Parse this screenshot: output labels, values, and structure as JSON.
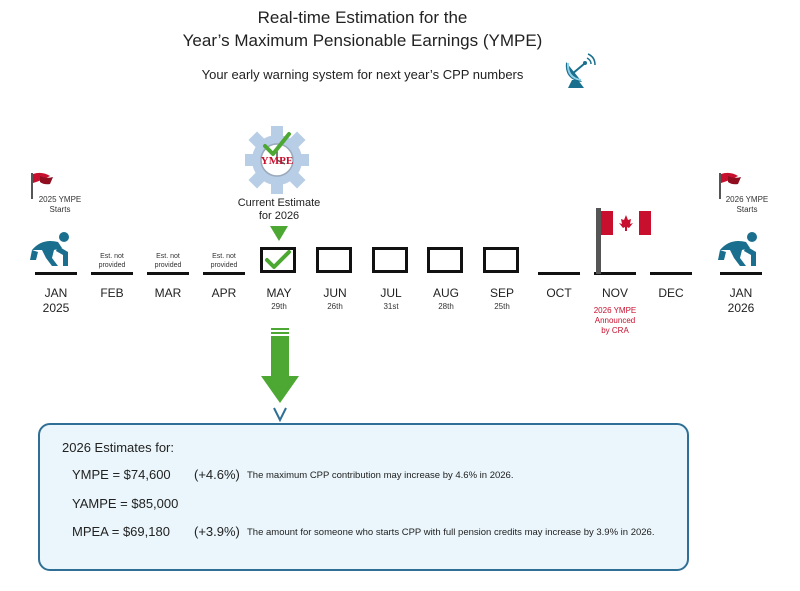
{
  "header": {
    "title_line1": "Real-time Estimation for the",
    "title_line2": "Year’s Maximum Pensionable Earnings (YMPE)",
    "subtitle": "Your early warning system for next year’s CPP numbers"
  },
  "start": {
    "flag_label": "2025 YMPE Starts",
    "flag_line1": "2025 YMPE",
    "flag_line2": "Starts"
  },
  "end": {
    "flag_line1": "2026 YMPE",
    "flag_line2": "Starts"
  },
  "gear_label": "YMPE",
  "current_estimate": {
    "line1": "Current Estimate",
    "line2": "for 2026"
  },
  "not_provided": {
    "line1": "Est. not",
    "line2": "provided"
  },
  "months": [
    {
      "label": "JAN",
      "year": "2025"
    },
    {
      "label": "FEB"
    },
    {
      "label": "MAR"
    },
    {
      "label": "APR"
    },
    {
      "label": "MAY",
      "day": "29th"
    },
    {
      "label": "JUN",
      "day": "26th"
    },
    {
      "label": "JUL",
      "day": "31st"
    },
    {
      "label": "AUG",
      "day": "28th"
    },
    {
      "label": "SEP",
      "day": "25th"
    },
    {
      "label": "OCT"
    },
    {
      "label": "NOV"
    },
    {
      "label": "DEC"
    },
    {
      "label": "JAN",
      "year": "2026"
    }
  ],
  "nov_note": {
    "line1": "2026 YMPE",
    "line2": "Announced",
    "line3": "by CRA"
  },
  "estimates": {
    "heading": "2026 Estimates for:",
    "rows": [
      {
        "label": "YMPE = $74,600",
        "pct": "(+4.6%)",
        "desc": "The maximum CPP contribution may increase by 4.6% in 2026."
      },
      {
        "label": "YAMPE = $85,000",
        "pct": "",
        "desc": ""
      },
      {
        "label": "MPEA = $69,180",
        "pct": "(+3.9%)",
        "desc": "The amount for someone who starts CPP with full pension credits may increase by 3.9% in 2026."
      }
    ]
  },
  "colors": {
    "accent_green": "#4ca832",
    "runner_teal": "#1a6f8e",
    "flag_red": "#c8102e",
    "panel_bg": "#eaf6fb",
    "panel_border": "#2f6f95"
  },
  "icons": [
    "satellite-dish-icon",
    "red-flag-icon",
    "runner-icon",
    "gear-clock-icon",
    "checkmark-icon",
    "canada-flag-icon",
    "down-arrow-icon"
  ]
}
